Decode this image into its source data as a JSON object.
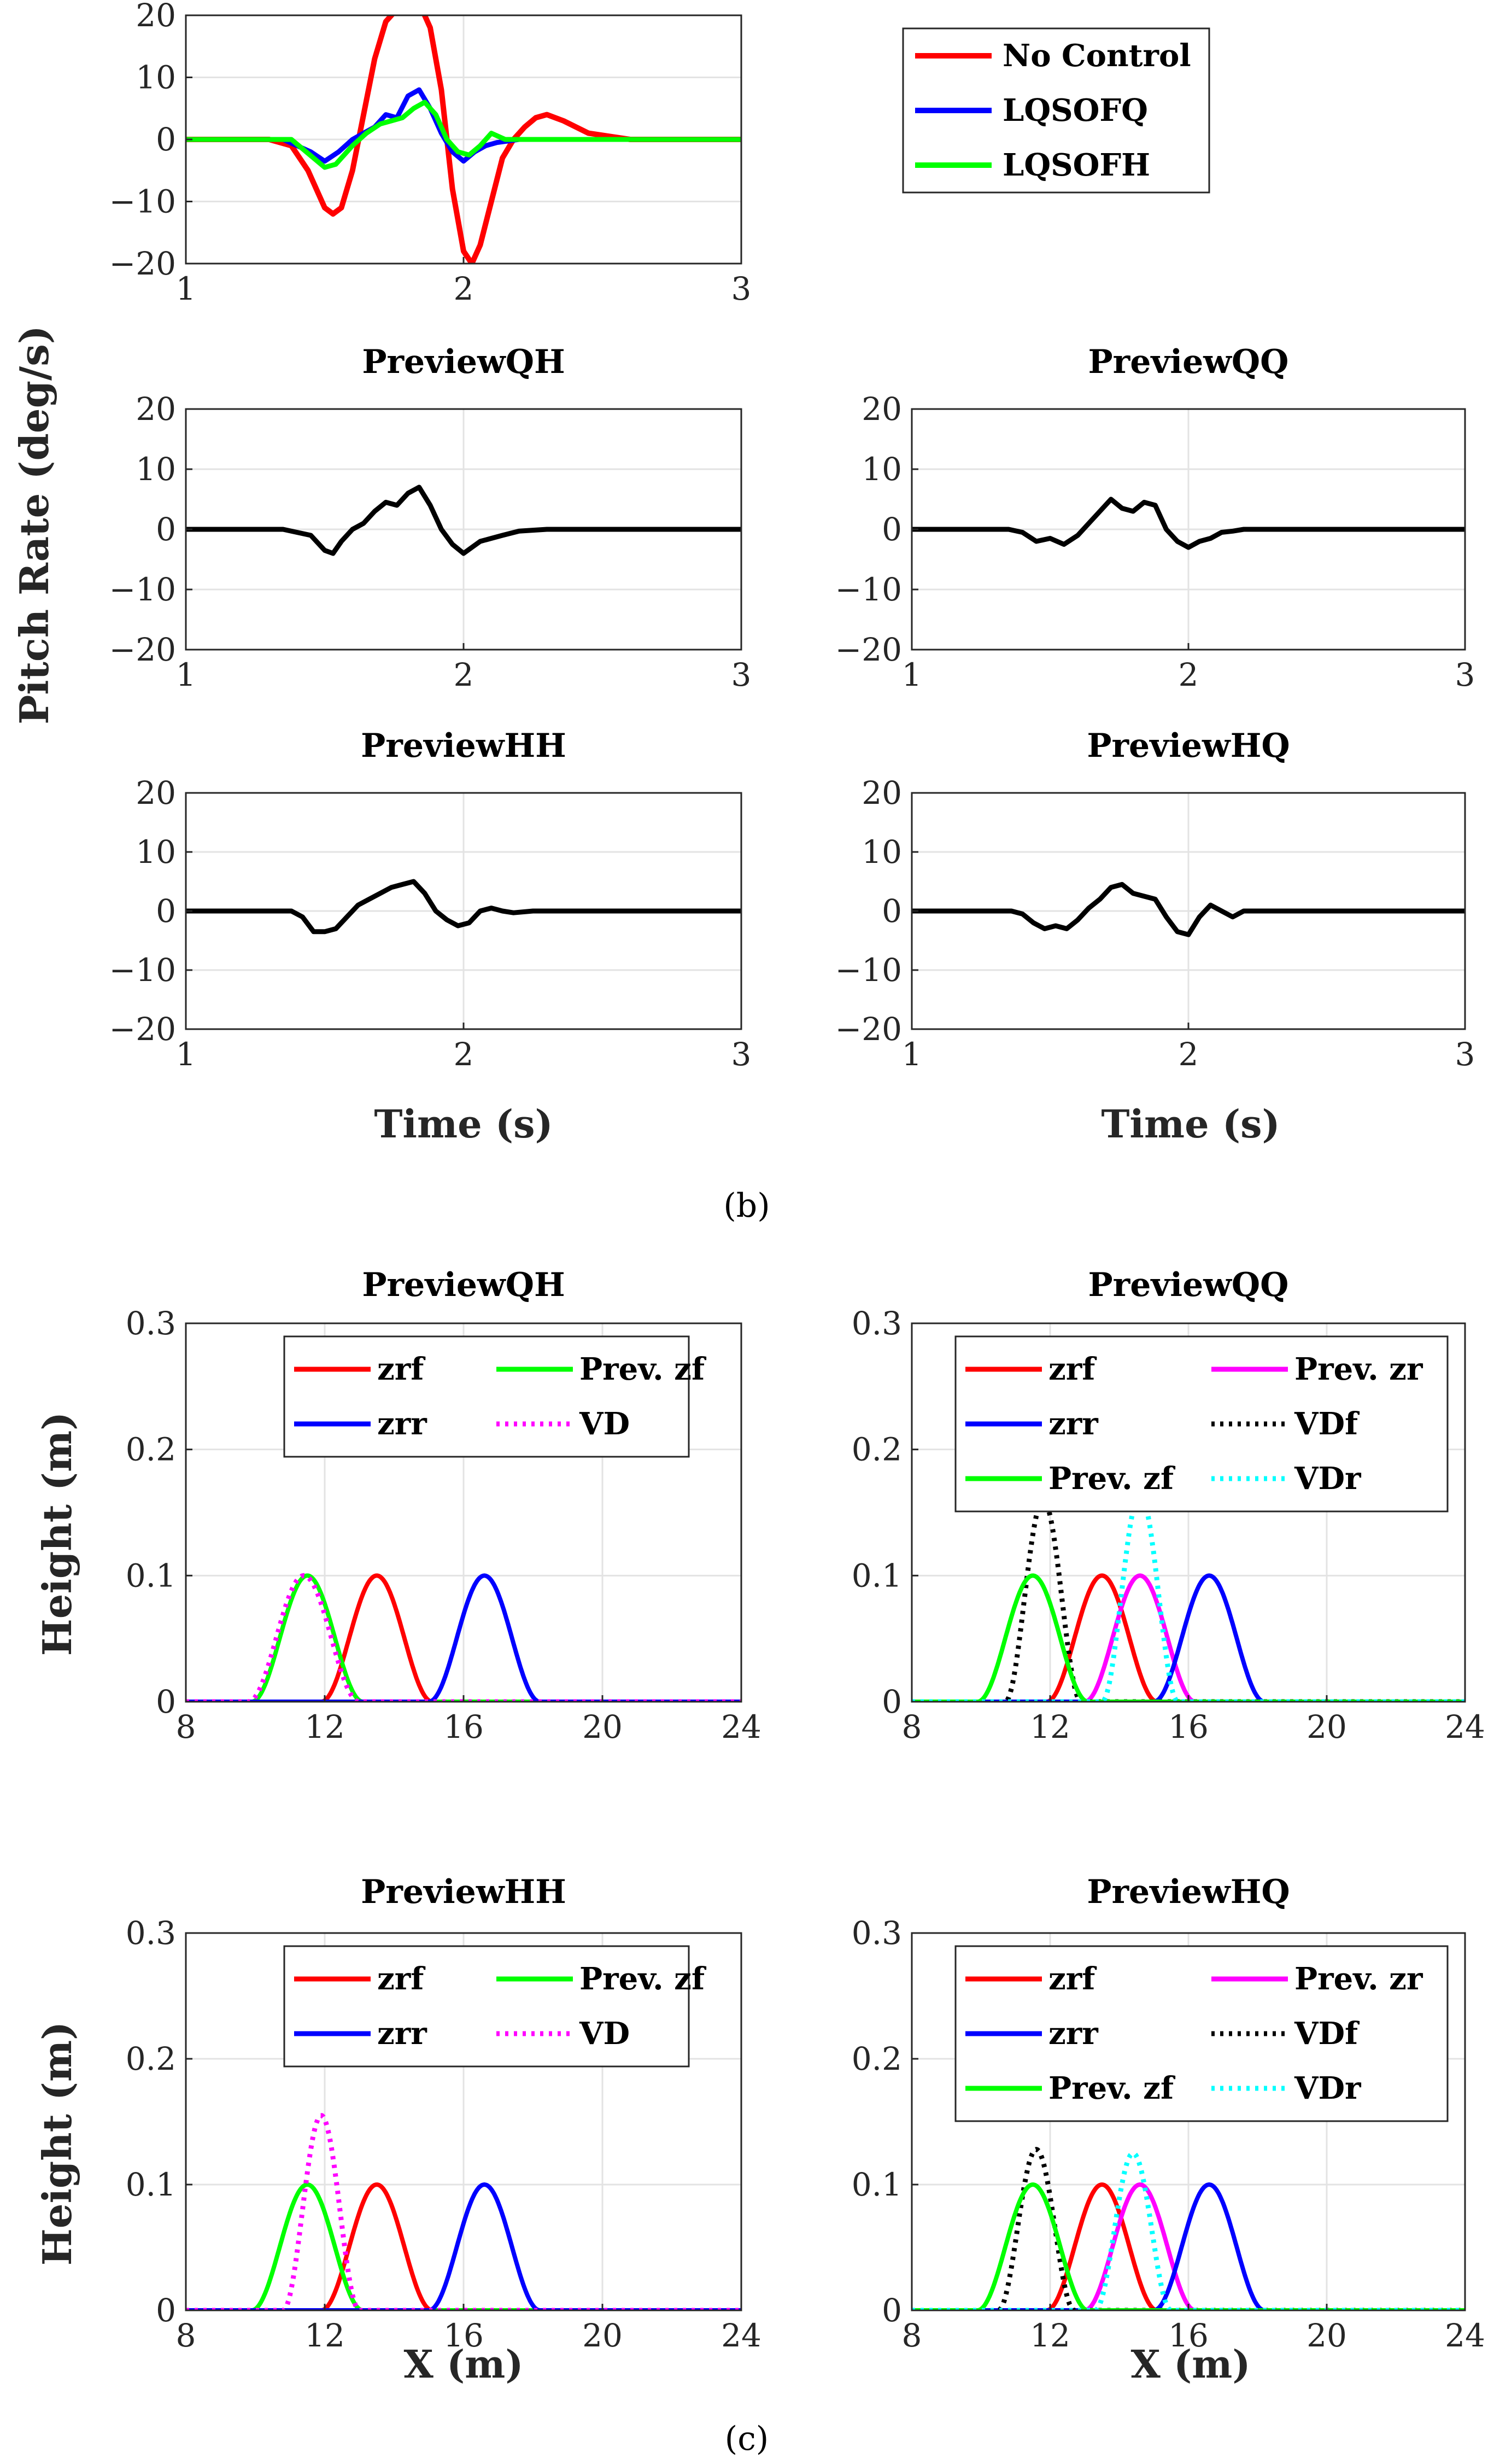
{
  "captions": {
    "b": "(b)",
    "c": "(c)"
  },
  "colors": {
    "red": "#ff0000",
    "blue": "#0000ff",
    "green": "#00ff00",
    "black": "#000000",
    "magenta": "#ff00ff",
    "cyan": "#00ffff"
  },
  "chart_data": [
    {
      "type": "line",
      "title": "",
      "xlabel": "",
      "ylabel": "",
      "xlim": [
        1,
        3
      ],
      "ylim": [
        -20,
        20
      ],
      "xticks": [
        "1",
        "2",
        "3"
      ],
      "yticks": [
        "20",
        "10",
        "0",
        "−10",
        "−20"
      ],
      "legend": [
        "No Control",
        "LQSOFQ",
        "LQSOFH"
      ],
      "series": [
        {
          "name": "No Control",
          "color": "red",
          "width": 10,
          "x": [
            1.0,
            1.3,
            1.38,
            1.44,
            1.5,
            1.53,
            1.56,
            1.6,
            1.64,
            1.68,
            1.72,
            1.76,
            1.8,
            1.84,
            1.88,
            1.92,
            1.96,
            2.0,
            2.03,
            2.06,
            2.1,
            2.14,
            2.18,
            2.22,
            2.26,
            2.3,
            2.36,
            2.45,
            2.6,
            2.8,
            3.0
          ],
          "y": [
            0,
            0,
            -1,
            -5,
            -11,
            -12,
            -11,
            -5,
            4,
            13,
            19,
            21,
            22,
            22,
            18,
            8,
            -8,
            -18,
            -20,
            -17,
            -10,
            -3,
            0,
            2,
            3.5,
            4,
            3,
            1,
            0,
            0,
            0
          ]
        },
        {
          "name": "LQSOFQ",
          "color": "blue",
          "width": 9,
          "x": [
            1.0,
            1.35,
            1.4,
            1.45,
            1.5,
            1.55,
            1.6,
            1.64,
            1.68,
            1.72,
            1.76,
            1.8,
            1.84,
            1.88,
            1.92,
            1.96,
            2.0,
            2.04,
            2.08,
            2.12,
            2.2,
            2.3,
            3.0
          ],
          "y": [
            0,
            0,
            -1,
            -2,
            -3.5,
            -2,
            0,
            1,
            2,
            4,
            3.5,
            7,
            8,
            5,
            1,
            -2,
            -3.5,
            -2,
            -1,
            -0.5,
            0,
            0,
            0
          ]
        },
        {
          "name": "LQSOFH",
          "color": "green",
          "width": 9,
          "x": [
            1.0,
            1.38,
            1.42,
            1.46,
            1.5,
            1.54,
            1.6,
            1.65,
            1.7,
            1.74,
            1.78,
            1.82,
            1.86,
            1.9,
            1.94,
            1.98,
            2.02,
            2.06,
            2.1,
            2.15,
            2.22,
            3.0
          ],
          "y": [
            0,
            0,
            -1.5,
            -3,
            -4.5,
            -4,
            -1,
            1,
            2.5,
            3,
            3.5,
            5,
            6,
            4,
            0,
            -2,
            -2.5,
            -1,
            1,
            0,
            0,
            0
          ]
        }
      ]
    },
    {
      "type": "line",
      "title": "PreviewQH",
      "xlim": [
        1,
        3
      ],
      "ylim": [
        -20,
        20
      ],
      "xticks": [
        "1",
        "2",
        "3"
      ],
      "yticks": [
        "20",
        "10",
        "0",
        "−10",
        "−20"
      ],
      "series": [
        {
          "name": "PreviewQH",
          "color": "black",
          "width": 9,
          "x": [
            1.0,
            1.35,
            1.4,
            1.45,
            1.5,
            1.53,
            1.56,
            1.6,
            1.64,
            1.68,
            1.72,
            1.76,
            1.8,
            1.84,
            1.88,
            1.92,
            1.96,
            2.0,
            2.03,
            2.06,
            2.1,
            2.14,
            2.2,
            2.3,
            3.0
          ],
          "y": [
            0,
            0,
            -0.5,
            -1,
            -3.5,
            -4,
            -2,
            0,
            1,
            3,
            4.5,
            4,
            6,
            7,
            4,
            0,
            -2.5,
            -4,
            -3,
            -2,
            -1.5,
            -1,
            -0.3,
            0,
            0
          ]
        }
      ]
    },
    {
      "type": "line",
      "title": "PreviewQQ",
      "xlim": [
        1,
        3
      ],
      "ylim": [
        -20,
        20
      ],
      "xticks": [
        "1",
        "2",
        "3"
      ],
      "yticks": [
        "20",
        "10",
        "0",
        "−10",
        "−20"
      ],
      "series": [
        {
          "name": "PreviewQQ",
          "color": "black",
          "width": 9,
          "x": [
            1.0,
            1.35,
            1.4,
            1.45,
            1.5,
            1.55,
            1.6,
            1.64,
            1.68,
            1.72,
            1.76,
            1.8,
            1.84,
            1.88,
            1.92,
            1.96,
            2.0,
            2.04,
            2.08,
            2.12,
            2.16,
            2.2,
            2.3,
            3.0
          ],
          "y": [
            0,
            0,
            -0.5,
            -2,
            -1.5,
            -2.5,
            -1,
            1,
            3,
            5,
            3.5,
            3,
            4.5,
            4,
            0,
            -2,
            -3,
            -2,
            -1.5,
            -0.5,
            -0.3,
            0,
            0,
            0
          ]
        }
      ]
    },
    {
      "type": "line",
      "title": "PreviewHH",
      "xlim": [
        1,
        3
      ],
      "ylim": [
        -20,
        20
      ],
      "xticks": [
        "1",
        "2",
        "3"
      ],
      "yticks": [
        "20",
        "10",
        "0",
        "−10",
        "−20"
      ],
      "series": [
        {
          "name": "PreviewHH",
          "color": "black",
          "width": 9,
          "x": [
            1.0,
            1.38,
            1.42,
            1.46,
            1.5,
            1.54,
            1.58,
            1.62,
            1.66,
            1.7,
            1.74,
            1.78,
            1.82,
            1.86,
            1.9,
            1.94,
            1.98,
            2.02,
            2.06,
            2.1,
            2.14,
            2.18,
            2.25,
            3.0
          ],
          "y": [
            0,
            0,
            -1,
            -3.5,
            -3.5,
            -3,
            -1,
            1,
            2,
            3,
            4,
            4.5,
            5,
            3,
            0,
            -1.5,
            -2.5,
            -2,
            0,
            0.5,
            0,
            -0.3,
            0,
            0
          ]
        }
      ]
    },
    {
      "type": "line",
      "title": "PreviewHQ",
      "xlim": [
        1,
        3
      ],
      "ylim": [
        -20,
        20
      ],
      "xticks": [
        "1",
        "2",
        "3"
      ],
      "yticks": [
        "20",
        "10",
        "0",
        "−10",
        "−20"
      ],
      "series": [
        {
          "name": "PreviewHQ",
          "color": "black",
          "width": 9,
          "x": [
            1.0,
            1.36,
            1.4,
            1.44,
            1.48,
            1.52,
            1.56,
            1.6,
            1.64,
            1.68,
            1.72,
            1.76,
            1.8,
            1.84,
            1.88,
            1.92,
            1.96,
            2.0,
            2.04,
            2.08,
            2.12,
            2.16,
            2.2,
            2.3,
            3.0
          ],
          "y": [
            0,
            0,
            -0.5,
            -2,
            -3,
            -2.5,
            -3,
            -1.5,
            0.5,
            2,
            4,
            4.5,
            3,
            2.5,
            2,
            -1,
            -3.5,
            -4,
            -1,
            1,
            0,
            -1,
            0,
            0,
            0
          ]
        }
      ]
    },
    {
      "type": "line",
      "title": "PreviewQH",
      "xlim": [
        8,
        24
      ],
      "ylim": [
        0,
        0.3
      ],
      "xticks": [
        "8",
        "12",
        "16",
        "20",
        "24"
      ],
      "yticks": [
        "0.3",
        "0.2",
        "0.1",
        "0"
      ],
      "legend_columns": 2,
      "legend": [
        "zrf",
        "Prev. zf",
        "zrr",
        "VD"
      ],
      "series": [
        {
          "name": "zrf",
          "color": "red",
          "dash": false,
          "bump": {
            "center": 13.5,
            "half_width": 1.6,
            "height": 0.1
          }
        },
        {
          "name": "Prev. zf",
          "color": "green",
          "dash": false,
          "bump": {
            "center": 11.5,
            "half_width": 1.6,
            "height": 0.1
          }
        },
        {
          "name": "zrr",
          "color": "blue",
          "dash": false,
          "bump": {
            "center": 16.6,
            "half_width": 1.6,
            "height": 0.1
          }
        },
        {
          "name": "VD",
          "color": "magenta",
          "dash": true,
          "bump": {
            "center": 11.4,
            "half_width": 1.6,
            "height": 0.1
          }
        }
      ]
    },
    {
      "type": "line",
      "title": "PreviewQQ",
      "xlim": [
        8,
        24
      ],
      "ylim": [
        0,
        0.3
      ],
      "xticks": [
        "8",
        "12",
        "16",
        "20",
        "24"
      ],
      "yticks": [
        "0.3",
        "0.2",
        "0.1",
        "0"
      ],
      "legend_columns": 2,
      "legend": [
        "zrf",
        "Prev. zr",
        "zrr",
        "VDf",
        "Prev. zf",
        "VDr"
      ],
      "series": [
        {
          "name": "zrf",
          "color": "red",
          "dash": false,
          "bump": {
            "center": 13.5,
            "half_width": 1.6,
            "height": 0.1
          }
        },
        {
          "name": "Prev. zr",
          "color": "magenta",
          "dash": false,
          "bump": {
            "center": 14.6,
            "half_width": 1.6,
            "height": 0.1
          }
        },
        {
          "name": "zrr",
          "color": "blue",
          "dash": false,
          "bump": {
            "center": 16.6,
            "half_width": 1.6,
            "height": 0.1
          }
        },
        {
          "name": "VDf",
          "color": "black",
          "dash": true,
          "bump": {
            "center": 11.8,
            "half_width": 1.1,
            "height": 0.16
          }
        },
        {
          "name": "Prev. zf",
          "color": "green",
          "dash": false,
          "bump": {
            "center": 11.5,
            "half_width": 1.6,
            "height": 0.1
          }
        },
        {
          "name": "VDr",
          "color": "cyan",
          "dash": true,
          "bump": {
            "center": 14.6,
            "half_width": 1.1,
            "height": 0.165
          }
        }
      ]
    },
    {
      "type": "line",
      "title": "PreviewHH",
      "xlim": [
        8,
        24
      ],
      "ylim": [
        0,
        0.3
      ],
      "xticks": [
        "8",
        "12",
        "16",
        "20",
        "24"
      ],
      "yticks": [
        "0.3",
        "0.2",
        "0.1",
        "0"
      ],
      "legend_columns": 2,
      "legend": [
        "zrf",
        "Prev. zf",
        "zrr",
        "VD"
      ],
      "series": [
        {
          "name": "zrf",
          "color": "red",
          "dash": false,
          "bump": {
            "center": 13.5,
            "half_width": 1.6,
            "height": 0.1
          }
        },
        {
          "name": "Prev. zf",
          "color": "green",
          "dash": false,
          "bump": {
            "center": 11.5,
            "half_width": 1.6,
            "height": 0.1
          }
        },
        {
          "name": "zrr",
          "color": "blue",
          "dash": false,
          "bump": {
            "center": 16.6,
            "half_width": 1.6,
            "height": 0.1
          }
        },
        {
          "name": "VD",
          "color": "magenta",
          "dash": true,
          "bump": {
            "center": 11.9,
            "half_width": 1.1,
            "height": 0.155
          }
        }
      ]
    },
    {
      "type": "line",
      "title": "PreviewHQ",
      "xlim": [
        8,
        24
      ],
      "ylim": [
        0,
        0.3
      ],
      "xticks": [
        "8",
        "12",
        "16",
        "20",
        "24"
      ],
      "yticks": [
        "0.3",
        "0.2",
        "0.1",
        "0"
      ],
      "legend_columns": 2,
      "legend": [
        "zrf",
        "Prev. zr",
        "zrr",
        "VDf",
        "Prev. zf",
        "VDr"
      ],
      "series": [
        {
          "name": "zrf",
          "color": "red",
          "dash": false,
          "bump": {
            "center": 13.5,
            "half_width": 1.6,
            "height": 0.1
          }
        },
        {
          "name": "Prev. zr",
          "color": "magenta",
          "dash": false,
          "bump": {
            "center": 14.6,
            "half_width": 1.6,
            "height": 0.1
          }
        },
        {
          "name": "zrr",
          "color": "blue",
          "dash": false,
          "bump": {
            "center": 16.6,
            "half_width": 1.6,
            "height": 0.1
          }
        },
        {
          "name": "VDf",
          "color": "black",
          "dash": true,
          "bump": {
            "center": 11.6,
            "half_width": 1.1,
            "height": 0.128
          }
        },
        {
          "name": "Prev. zf",
          "color": "green",
          "dash": false,
          "bump": {
            "center": 11.5,
            "half_width": 1.6,
            "height": 0.1
          }
        },
        {
          "name": "VDr",
          "color": "cyan",
          "dash": true,
          "bump": {
            "center": 14.4,
            "half_width": 1.1,
            "height": 0.125
          }
        }
      ]
    }
  ],
  "axis_labels": {
    "pitch_ylabel": "Pitch Rate (deg/s)",
    "time_xlabel": "Time (s)",
    "height_ylabel": "Height (m)",
    "x_xlabel": "X (m)"
  }
}
